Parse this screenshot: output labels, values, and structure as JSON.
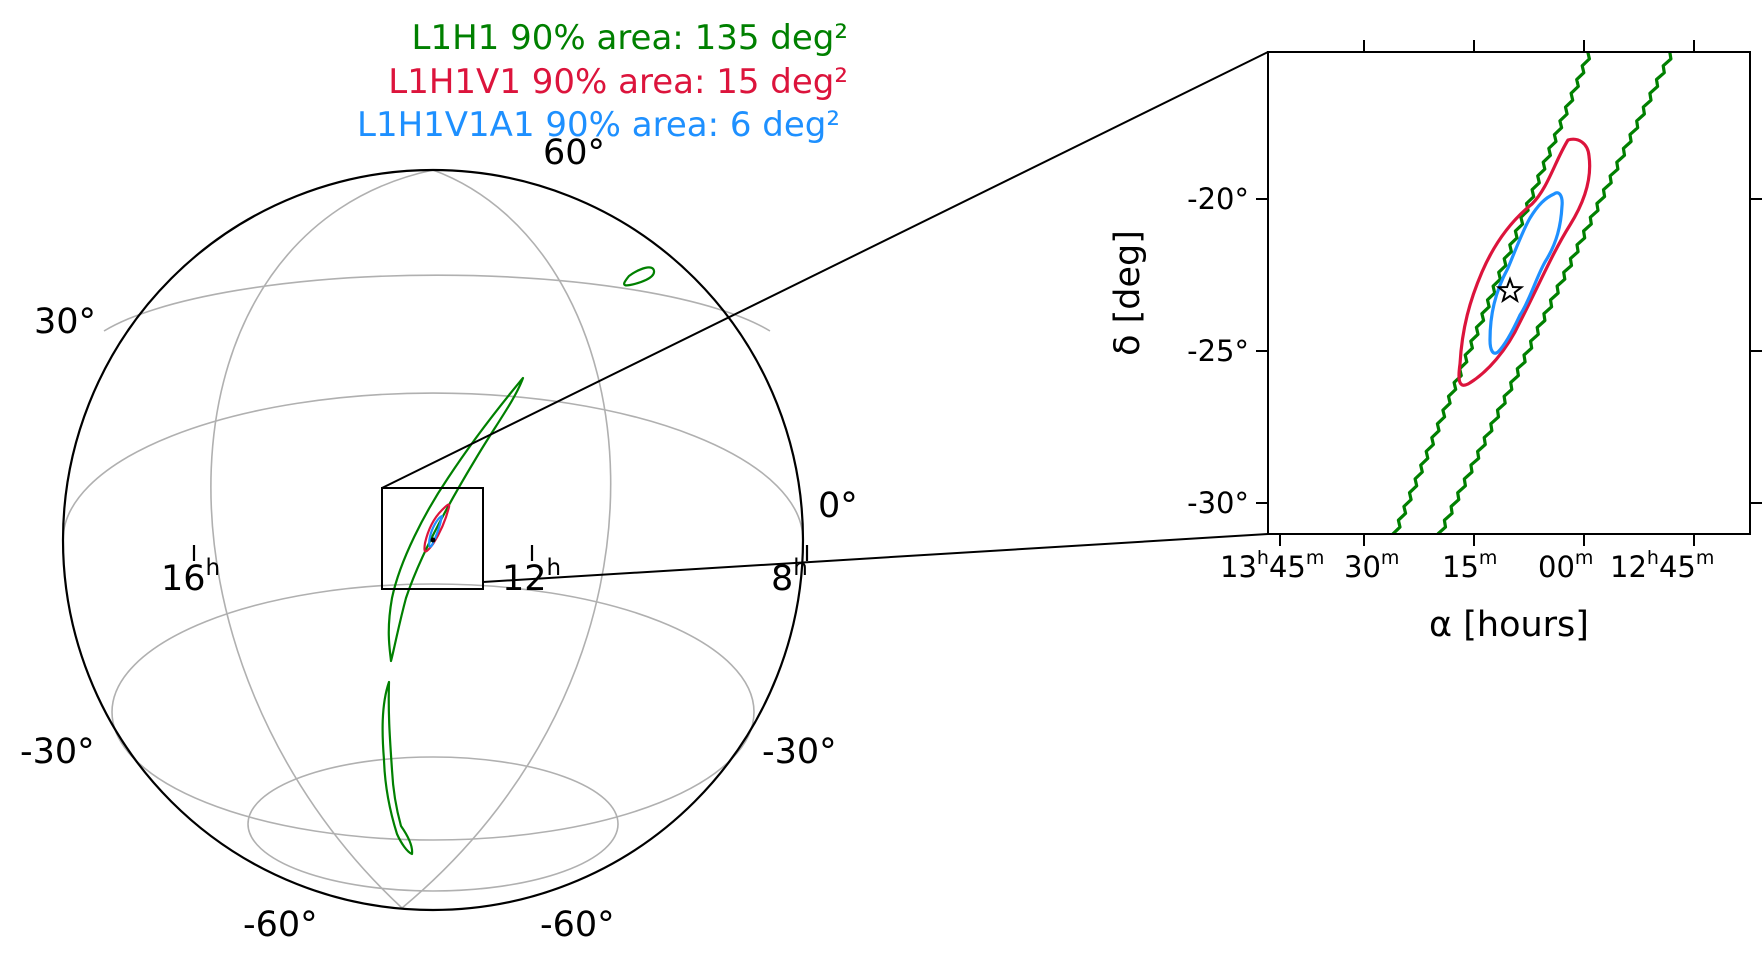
{
  "chart_data": [
    {
      "type": "contour",
      "projection": "orthographic globe",
      "legend": [
        {
          "label": "L1H1 90% area: 135 deg²",
          "color": "#008000"
        },
        {
          "label": "L1H1V1 90% area: 15 deg²",
          "color": "#dc143c"
        },
        {
          "label": "L1H1V1A1 90% area: 6 deg²",
          "color": "#1e90ff"
        }
      ],
      "grid": true,
      "dec_labels": [
        "60°",
        "30°",
        "0°",
        "-30°",
        "-30°",
        "-60°",
        "-60°"
      ],
      "ra_labels": [
        {
          "h": "16",
          "u": "h"
        },
        {
          "h": "12",
          "u": "h"
        },
        {
          "h": "8",
          "u": "h"
        }
      ],
      "series": [
        {
          "name": "L1H1",
          "color": "#008000"
        },
        {
          "name": "L1H1V1",
          "color": "#dc143c"
        },
        {
          "name": "L1H1V1A1",
          "color": "#1e90ff"
        }
      ]
    },
    {
      "type": "contour",
      "title": "",
      "xlabel": "α [hours]",
      "ylabel": "δ [deg]",
      "ylim": [
        -31,
        -15
      ],
      "xlim": [
        13.78,
        12.62
      ],
      "grid": false,
      "x_tick_labels": [
        {
          "main": "13",
          "sup": "h",
          "main2": "45",
          "sup2": "m"
        },
        {
          "main": "30",
          "sup": "m"
        },
        {
          "main": "15",
          "sup": "m"
        },
        {
          "main": "00",
          "sup": "m"
        },
        {
          "main": "12",
          "sup": "h",
          "main2": "45",
          "sup2": "m"
        }
      ],
      "y_ticks": [
        -20,
        -25,
        -30
      ],
      "y_tick_labels": [
        "-20°",
        "-25°",
        "-30°"
      ],
      "injection": {
        "ra_hours": 13.2,
        "dec": -23.2,
        "marker": "star"
      },
      "series": [
        {
          "name": "L1H1",
          "color": "#008000"
        },
        {
          "name": "L1H1V1",
          "color": "#dc143c"
        },
        {
          "name": "L1H1V1A1",
          "color": "#1e90ff"
        }
      ]
    }
  ]
}
